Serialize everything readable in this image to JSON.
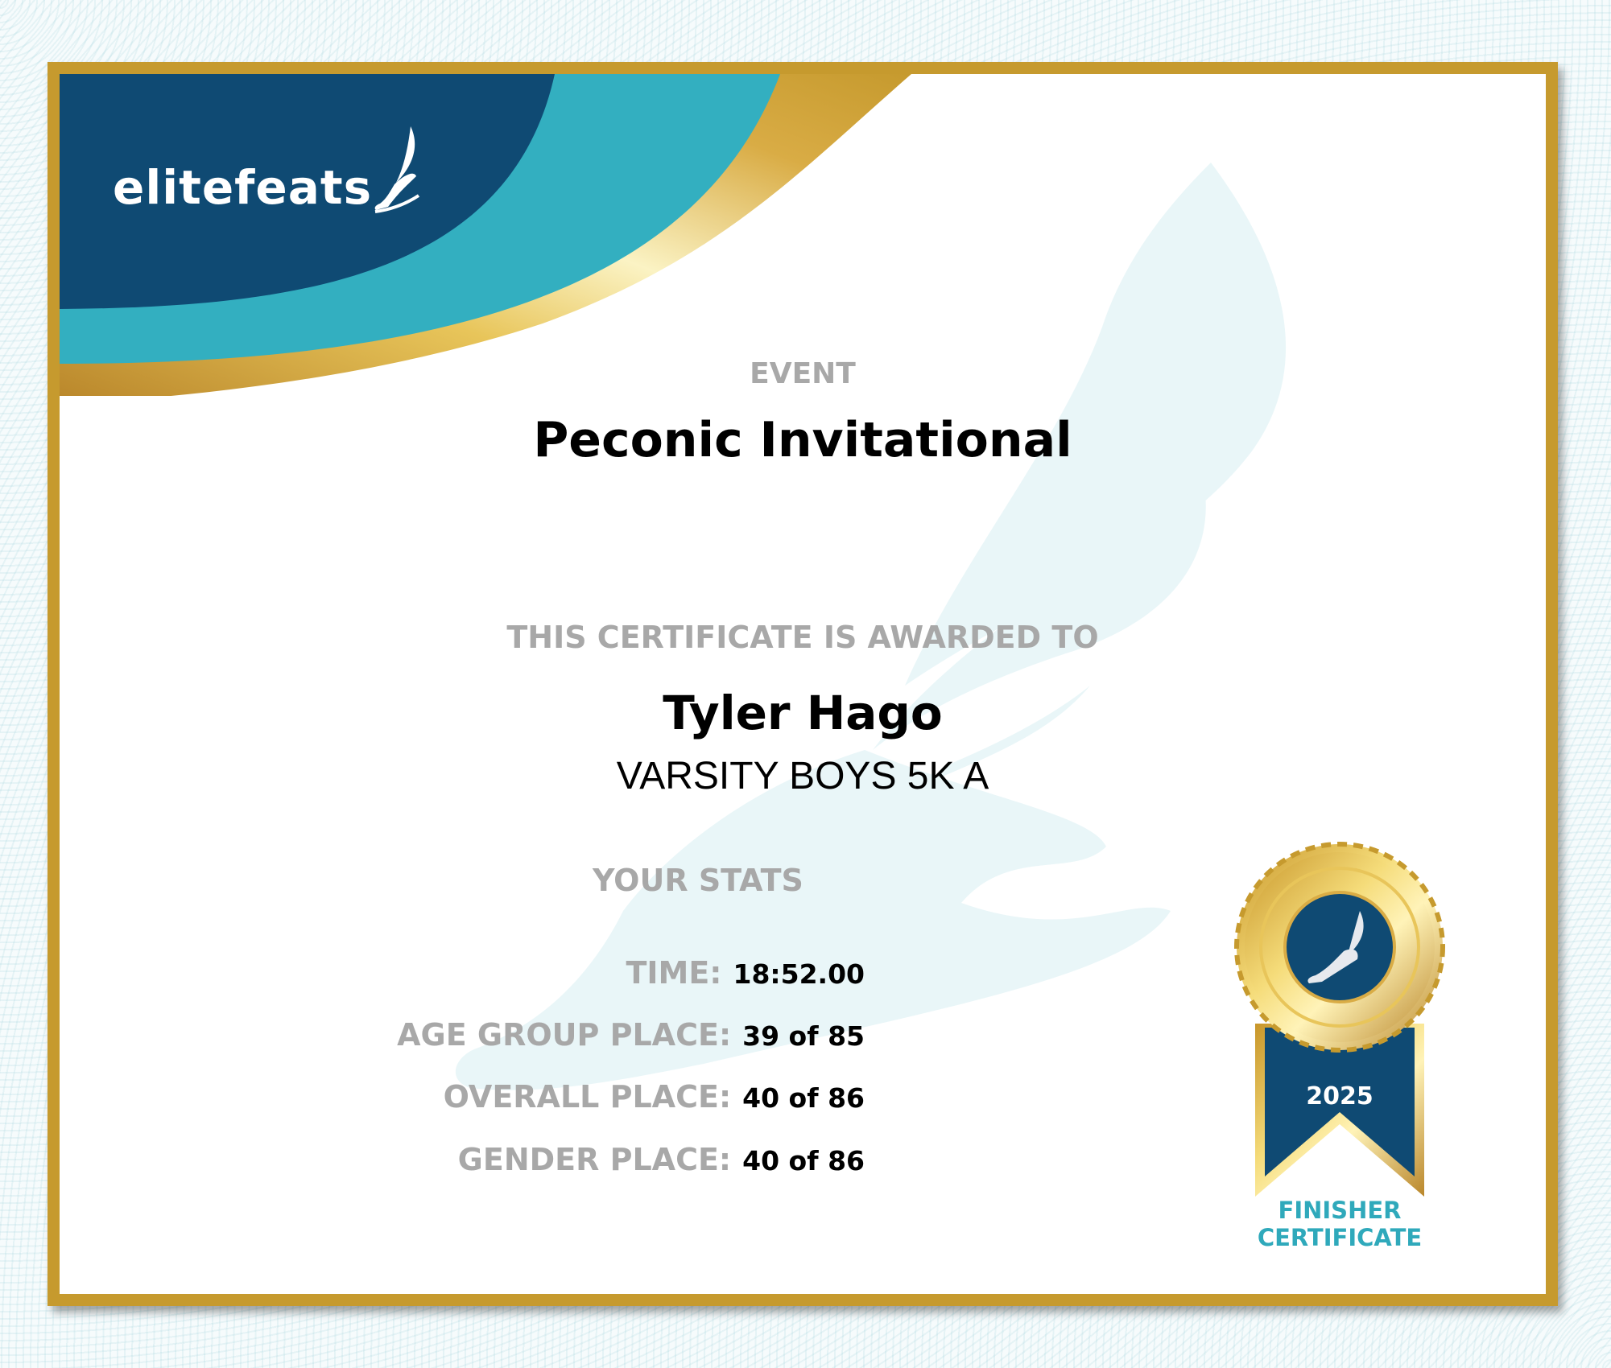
{
  "brand": {
    "logo_text": "elitefeats"
  },
  "colors": {
    "navy": "#0f4a73",
    "teal": "#33afc0",
    "gold": "#c69a2e",
    "label_gray": "#a8a8a8"
  },
  "event": {
    "label": "EVENT",
    "title": "Peconic Invitational"
  },
  "award": {
    "label": "THIS CERTIFICATE IS AWARDED TO",
    "name": "Tyler Hago",
    "division": "VARSITY BOYS 5K A"
  },
  "stats": {
    "heading": "YOUR STATS",
    "rows": [
      {
        "label": "TIME:",
        "value": "18:52.00"
      },
      {
        "label": "AGE GROUP PLACE:",
        "value": "39 of 85"
      },
      {
        "label": "OVERALL PLACE:",
        "value": "40 of 86"
      },
      {
        "label": "GENDER PLACE:",
        "value": "40 of 86"
      }
    ]
  },
  "badge": {
    "year": "2025",
    "line1": "FINISHER",
    "line2": "CERTIFICATE",
    "icon": "winged-foot-icon"
  }
}
